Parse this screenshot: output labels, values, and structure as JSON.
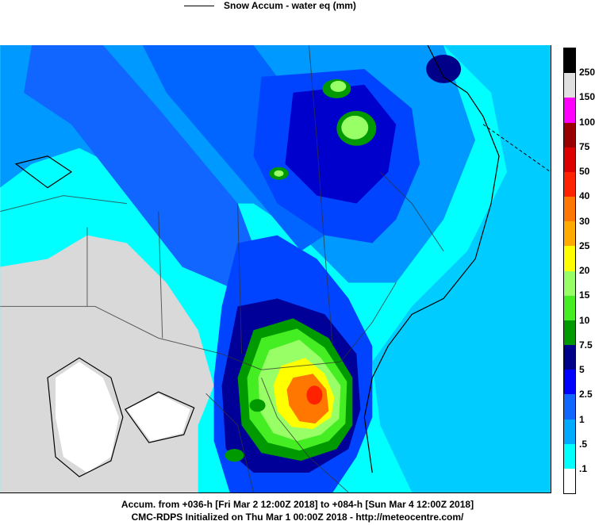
{
  "legend": {
    "label": "Snow Accum - water eq (mm)"
  },
  "footer": {
    "line1": "Accum. from +036-h [Fri Mar 2 12:00Z 2018] to +084-h [Sun Mar 4 12:00Z 2018]",
    "line2": "CMC-RDPS Initialized on Thu Mar 1 00:00Z 2018 - http://meteocentre.com/"
  },
  "colorbar": {
    "labels": [
      "250",
      "150",
      "100",
      "75",
      "50",
      "40",
      "30",
      "25",
      "20",
      "15",
      "10",
      "7.5",
      "5",
      "2.5",
      "1",
      ".5",
      ".1"
    ],
    "colors": [
      "#000000",
      "#e0e0e0",
      "#ff00ff",
      "#990000",
      "#dd0000",
      "#ff2200",
      "#ff7700",
      "#ffaa00",
      "#ffff00",
      "#99ff66",
      "#44ee22",
      "#009900",
      "#000088",
      "#0000ff",
      "#1166ff",
      "#00aaff",
      "#00ffff",
      "#ffffff"
    ]
  },
  "map": {
    "colors": {
      "ocean": "#00bbff",
      "light": "#00ffff",
      "blue1": "#0099ff",
      "blue2": "#0044ff",
      "blue3": "#0000dd",
      "navy": "#000088",
      "green": "#009900",
      "green2": "#44ee22",
      "lime": "#99ff66",
      "yellow": "#ffff00",
      "orange": "#ff7700",
      "red": "#ff2200",
      "gray": "#d9d9d9",
      "white": "#ffffff"
    }
  }
}
